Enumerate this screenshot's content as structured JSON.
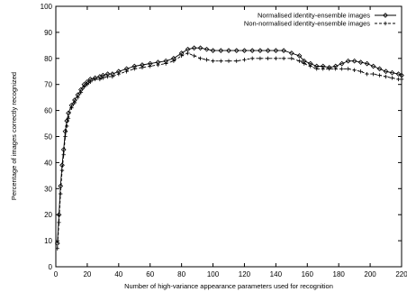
{
  "chart_data": {
    "type": "line",
    "title": "",
    "xlabel": "Number of high-variance appearance parameters used for recognition",
    "ylabel": "Percentage of images correctly recognized",
    "xlim": [
      0,
      220
    ],
    "ylim": [
      0,
      100
    ],
    "xticks": [
      0,
      20,
      40,
      60,
      80,
      100,
      120,
      140,
      160,
      180,
      200,
      220
    ],
    "yticks": [
      0,
      10,
      20,
      30,
      40,
      50,
      60,
      70,
      80,
      90,
      100
    ],
    "grid": false,
    "legend_position": "top-right",
    "series": [
      {
        "name": "Normalised identity-ensemble images",
        "marker": "diamond",
        "line_style": "solid",
        "color": "#000000",
        "points": [
          [
            1,
            9
          ],
          [
            2,
            20
          ],
          [
            3,
            31
          ],
          [
            4,
            39
          ],
          [
            5,
            45
          ],
          [
            6,
            52
          ],
          [
            7,
            56
          ],
          [
            8,
            59
          ],
          [
            10,
            62
          ],
          [
            12,
            64
          ],
          [
            14,
            66
          ],
          [
            16,
            68
          ],
          [
            18,
            70
          ],
          [
            20,
            71
          ],
          [
            22,
            72
          ],
          [
            25,
            72.5
          ],
          [
            28,
            73
          ],
          [
            30,
            73.5
          ],
          [
            33,
            74
          ],
          [
            36,
            74
          ],
          [
            40,
            75
          ],
          [
            45,
            76
          ],
          [
            50,
            77
          ],
          [
            55,
            77.5
          ],
          [
            60,
            78
          ],
          [
            65,
            78.5
          ],
          [
            70,
            79
          ],
          [
            75,
            80
          ],
          [
            80,
            82
          ],
          [
            84,
            83.5
          ],
          [
            88,
            84
          ],
          [
            92,
            84
          ],
          [
            96,
            83.5
          ],
          [
            100,
            83
          ],
          [
            105,
            83
          ],
          [
            110,
            83
          ],
          [
            115,
            83
          ],
          [
            120,
            83
          ],
          [
            125,
            83
          ],
          [
            130,
            83
          ],
          [
            135,
            83
          ],
          [
            140,
            83
          ],
          [
            145,
            83
          ],
          [
            150,
            82
          ],
          [
            155,
            81
          ],
          [
            158,
            79
          ],
          [
            162,
            78
          ],
          [
            166,
            77
          ],
          [
            170,
            77
          ],
          [
            174,
            76.5
          ],
          [
            178,
            77
          ],
          [
            182,
            78
          ],
          [
            186,
            79
          ],
          [
            190,
            79
          ],
          [
            194,
            78.5
          ],
          [
            198,
            78
          ],
          [
            202,
            77
          ],
          [
            206,
            76
          ],
          [
            210,
            75
          ],
          [
            214,
            74.5
          ],
          [
            218,
            74
          ],
          [
            220,
            73.5
          ]
        ]
      },
      {
        "name": "Non-normalised identity-ensemble images",
        "marker": "plus",
        "line_style": "dashed",
        "color": "#000000",
        "points": [
          [
            1,
            7
          ],
          [
            2,
            17
          ],
          [
            3,
            28
          ],
          [
            4,
            37
          ],
          [
            5,
            43
          ],
          [
            6,
            50
          ],
          [
            7,
            54
          ],
          [
            8,
            57
          ],
          [
            10,
            61
          ],
          [
            12,
            63
          ],
          [
            14,
            65
          ],
          [
            16,
            67
          ],
          [
            18,
            69
          ],
          [
            20,
            70
          ],
          [
            22,
            71
          ],
          [
            25,
            72
          ],
          [
            28,
            72
          ],
          [
            30,
            72.5
          ],
          [
            33,
            73
          ],
          [
            36,
            73
          ],
          [
            40,
            74
          ],
          [
            45,
            75
          ],
          [
            50,
            76
          ],
          [
            55,
            76.5
          ],
          [
            60,
            77
          ],
          [
            65,
            77.5
          ],
          [
            70,
            78
          ],
          [
            75,
            79
          ],
          [
            80,
            81
          ],
          [
            84,
            82
          ],
          [
            88,
            81
          ],
          [
            92,
            80
          ],
          [
            96,
            79.5
          ],
          [
            100,
            79
          ],
          [
            105,
            79
          ],
          [
            110,
            79
          ],
          [
            115,
            79
          ],
          [
            120,
            79.5
          ],
          [
            125,
            80
          ],
          [
            130,
            80
          ],
          [
            135,
            80
          ],
          [
            140,
            80
          ],
          [
            145,
            80
          ],
          [
            150,
            80
          ],
          [
            155,
            79
          ],
          [
            158,
            78
          ],
          [
            162,
            77
          ],
          [
            166,
            76
          ],
          [
            170,
            76
          ],
          [
            174,
            76
          ],
          [
            178,
            76
          ],
          [
            182,
            76
          ],
          [
            186,
            76
          ],
          [
            190,
            75.5
          ],
          [
            194,
            75
          ],
          [
            198,
            74
          ],
          [
            202,
            74
          ],
          [
            206,
            73.5
          ],
          [
            210,
            73
          ],
          [
            214,
            72.5
          ],
          [
            218,
            72
          ],
          [
            220,
            72
          ]
        ]
      }
    ]
  }
}
